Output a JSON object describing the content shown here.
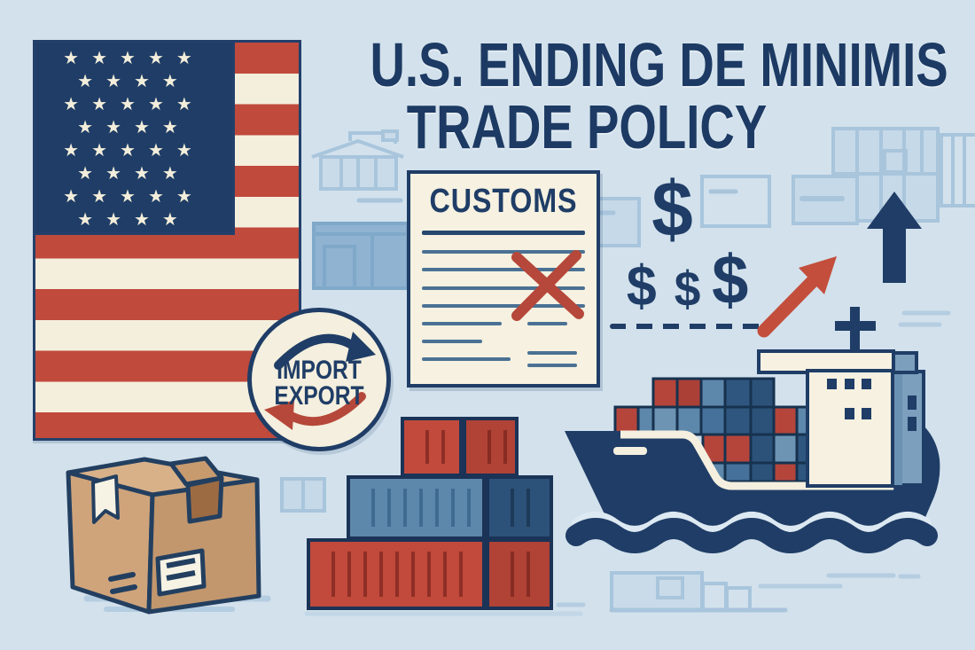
{
  "title": {
    "line1": "U.S. ENDING DE MINIMIS",
    "line2": "TRADE POLICY"
  },
  "document": {
    "title": "CUSTOMS"
  },
  "badge": {
    "line1": "IMPORT",
    "line2": "EXPORT"
  },
  "money": {
    "dollar": "$"
  },
  "flag": {
    "star": "★",
    "star_rows": [
      5,
      4,
      5,
      4,
      5,
      4,
      5,
      4
    ]
  },
  "colors": {
    "background": "#d2e1ec",
    "navy": "#1f3d66",
    "red": "#c04a3c",
    "cream": "#f4efdd",
    "steel_blue": "#5e88ab",
    "container_navy": "#2c527a",
    "cardboard_tan": "#cfa47b",
    "faded_decor": "#a8c5dc"
  }
}
